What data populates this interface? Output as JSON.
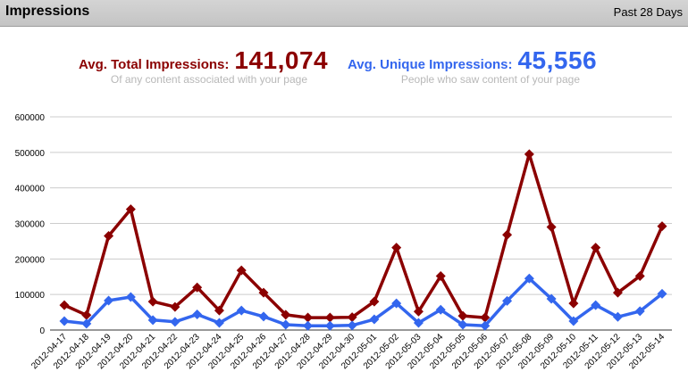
{
  "header": {
    "title": "Impressions",
    "period": "Past 28 Days"
  },
  "stats": {
    "total": {
      "label": "Avg. Total Impressions:",
      "value": "141,074",
      "sub": "Of any content associated with your page"
    },
    "unique": {
      "label": "Avg. Unique Impressions:",
      "value": "45,556",
      "sub": "People who saw content of your page"
    }
  },
  "colors": {
    "total": "#8b0000",
    "unique": "#3366ee",
    "grid": "#cccccc"
  },
  "chart_data": {
    "type": "line",
    "categories": [
      "2012-04-17",
      "2012-04-18",
      "2012-04-19",
      "2012-04-20",
      "2012-04-21",
      "2012-04-22",
      "2012-04-23",
      "2012-04-24",
      "2012-04-25",
      "2012-04-26",
      "2012-04-27",
      "2012-04-28",
      "2012-04-29",
      "2012-04-30",
      "2012-05-01",
      "2012-05-02",
      "2012-05-03",
      "2012-05-04",
      "2012-05-05",
      "2012-05-06",
      "2012-05-07",
      "2012-05-08",
      "2012-05-09",
      "2012-05-10",
      "2012-05-11",
      "2012-05-12",
      "2012-05-13",
      "2012-05-14"
    ],
    "series": [
      {
        "key": "total",
        "values": [
          70000,
          42000,
          265000,
          340000,
          80000,
          65000,
          120000,
          55000,
          168000,
          105000,
          43000,
          35000,
          35000,
          36000,
          80000,
          232000,
          52000,
          152000,
          40000,
          35000,
          268000,
          495000,
          290000,
          75000,
          232000,
          105000,
          152000,
          292000
        ]
      },
      {
        "key": "unique",
        "values": [
          25000,
          18000,
          83000,
          93000,
          28000,
          23000,
          44000,
          20000,
          55000,
          38000,
          15000,
          12000,
          12000,
          13000,
          30000,
          75000,
          20000,
          57000,
          15000,
          12000,
          82000,
          145000,
          88000,
          25000,
          70000,
          37000,
          53000,
          102000
        ]
      }
    ],
    "yticks": [
      "600000",
      "500000",
      "400000",
      "300000",
      "200000",
      "100000",
      "0"
    ],
    "ylim": [
      0,
      600000
    ],
    "grid": true
  }
}
